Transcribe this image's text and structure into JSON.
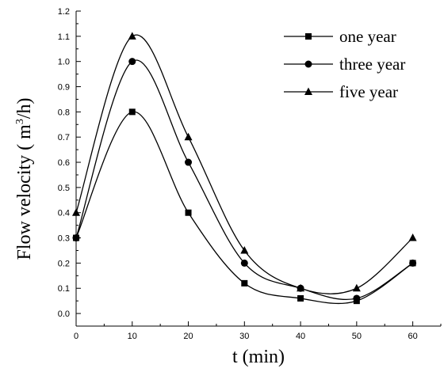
{
  "chart_data": {
    "type": "line",
    "xlabel": "t (min)",
    "ylabel_text": "Flow velocity ( m",
    "ylabel_sup": "3",
    "ylabel_tail": "/h)",
    "xlim": [
      0,
      65
    ],
    "ylim": [
      -0.05,
      1.2
    ],
    "x_ticks": [
      0,
      10,
      20,
      30,
      40,
      50,
      60
    ],
    "x_minor_step": 5,
    "y_ticks": [
      0.0,
      0.1,
      0.2,
      0.3,
      0.4,
      0.5,
      0.6,
      0.7,
      0.8,
      0.9,
      1.0,
      1.1,
      1.2
    ],
    "y_tick_labels": [
      "0.0",
      "0.1",
      "0.2",
      "0.3",
      "0.4",
      "0.5",
      "0.6",
      "0.7",
      "0.8",
      "0.9",
      "1.0",
      "1.1",
      "1.2"
    ],
    "y_minor_step": 0.05,
    "grid": false,
    "legend_position": "top-right",
    "x": [
      0,
      10,
      20,
      30,
      40,
      50,
      60
    ],
    "series": [
      {
        "name": "one year",
        "marker": "square",
        "values": [
          0.3,
          0.8,
          0.4,
          0.12,
          0.06,
          0.05,
          0.2
        ]
      },
      {
        "name": "three year",
        "marker": "circle",
        "values": [
          0.3,
          1.0,
          0.6,
          0.2,
          0.1,
          0.06,
          0.2
        ]
      },
      {
        "name": "five year",
        "marker": "triangle",
        "values": [
          0.4,
          1.1,
          0.7,
          0.25,
          0.1,
          0.1,
          0.3
        ]
      }
    ],
    "colors": {
      "line": "#000000",
      "background": "#ffffff"
    }
  }
}
